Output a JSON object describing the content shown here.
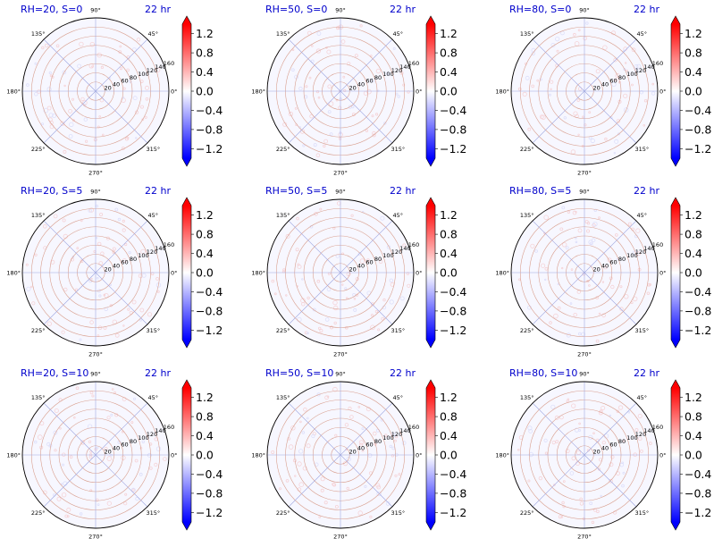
{
  "figure": {
    "title_color": "#0000cc",
    "ring_color": "#d9a090",
    "spoke_color": "#a0a8e0",
    "cmap": [
      "#0000ff",
      "#ffffff",
      "#ff0000"
    ],
    "colorbar_ticks": [
      "1.2",
      "0.8",
      "0.4",
      "0.0",
      "−0.4",
      "−0.8",
      "−1.2"
    ],
    "angle_labels": [
      "0°",
      "45°",
      "90°",
      "135°",
      "180°",
      "225°",
      "270°",
      "315°"
    ],
    "radial_labels": [
      "20",
      "40",
      "60",
      "80",
      "100",
      "120",
      "140",
      "160"
    ]
  },
  "chart_data": [
    {
      "type": "heatmap",
      "projection": "polar",
      "title_left": "RH=20, S=0",
      "title_right": "22 hr",
      "rmax": 160,
      "colorbar_range": [
        -1.4,
        1.4
      ],
      "colorbar_ticks": [
        1.2,
        0.8,
        0.4,
        0.0,
        -0.4,
        -0.8,
        -1.2
      ]
    },
    {
      "type": "heatmap",
      "projection": "polar",
      "title_left": "RH=50, S=0",
      "title_right": "22 hr",
      "rmax": 160,
      "colorbar_range": [
        -1.4,
        1.4
      ],
      "colorbar_ticks": [
        1.2,
        0.8,
        0.4,
        0.0,
        -0.4,
        -0.8,
        -1.2
      ]
    },
    {
      "type": "heatmap",
      "projection": "polar",
      "title_left": "RH=80, S=0",
      "title_right": "22 hr",
      "rmax": 160,
      "colorbar_range": [
        -1.4,
        1.4
      ],
      "colorbar_ticks": [
        1.2,
        0.8,
        0.4,
        0.0,
        -0.4,
        -0.8,
        -1.2
      ]
    },
    {
      "type": "heatmap",
      "projection": "polar",
      "title_left": "RH=20, S=5",
      "title_right": "22 hr",
      "rmax": 160,
      "colorbar_range": [
        -1.4,
        1.4
      ],
      "colorbar_ticks": [
        1.2,
        0.8,
        0.4,
        0.0,
        -0.4,
        -0.8,
        -1.2
      ]
    },
    {
      "type": "heatmap",
      "projection": "polar",
      "title_left": "RH=50, S=5",
      "title_right": "22 hr",
      "rmax": 160,
      "colorbar_range": [
        -1.4,
        1.4
      ],
      "colorbar_ticks": [
        1.2,
        0.8,
        0.4,
        0.0,
        -0.4,
        -0.8,
        -1.2
      ]
    },
    {
      "type": "heatmap",
      "projection": "polar",
      "title_left": "RH=80, S=5",
      "title_right": "22 hr",
      "rmax": 160,
      "colorbar_range": [
        -1.4,
        1.4
      ],
      "colorbar_ticks": [
        1.2,
        0.8,
        0.4,
        0.0,
        -0.4,
        -0.8,
        -1.2
      ]
    },
    {
      "type": "heatmap",
      "projection": "polar",
      "title_left": "RH=20, S=10",
      "title_right": "22 hr",
      "rmax": 160,
      "colorbar_range": [
        -1.4,
        1.4
      ],
      "colorbar_ticks": [
        1.2,
        0.8,
        0.4,
        0.0,
        -0.4,
        -0.8,
        -1.2
      ]
    },
    {
      "type": "heatmap",
      "projection": "polar",
      "title_left": "RH=50, S=10",
      "title_right": "22 hr",
      "rmax": 160,
      "colorbar_range": [
        -1.4,
        1.4
      ],
      "colorbar_ticks": [
        1.2,
        0.8,
        0.4,
        0.0,
        -0.4,
        -0.8,
        -1.2
      ]
    },
    {
      "type": "heatmap",
      "projection": "polar",
      "title_left": "RH=80, S=10",
      "title_right": "22 hr",
      "rmax": 160,
      "colorbar_range": [
        -1.4,
        1.4
      ],
      "colorbar_ticks": [
        1.2,
        0.8,
        0.4,
        0.0,
        -0.4,
        -0.8,
        -1.2
      ]
    }
  ]
}
